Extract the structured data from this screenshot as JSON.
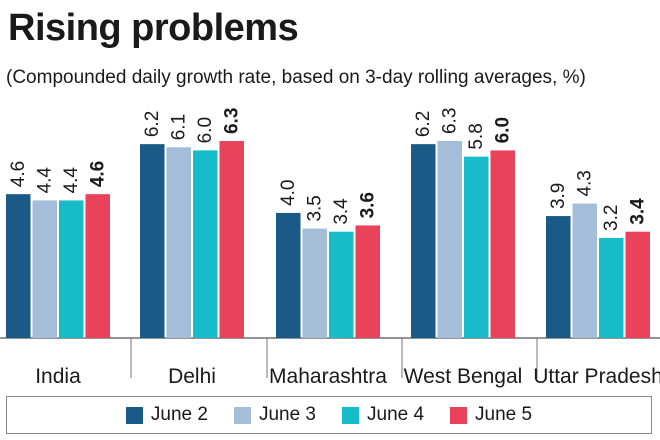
{
  "chart_data": {
    "type": "bar",
    "title": "Rising problems",
    "subtitle": "(Compounded daily growth rate, based on 3-day rolling averages, %)",
    "categories": [
      "India",
      "Delhi",
      "Maharashtra",
      "West Bengal",
      "Uttar Pradesh"
    ],
    "series": [
      {
        "name": "June 2",
        "color": "#1a5a86",
        "values": [
          4.6,
          6.2,
          4.0,
          6.2,
          3.9
        ],
        "labels": [
          "4.6",
          "6.2",
          "4.0",
          "6.2",
          "3.9"
        ],
        "bold": false
      },
      {
        "name": "June 3",
        "color": "#a4bed9",
        "values": [
          4.4,
          6.1,
          3.5,
          6.3,
          4.3
        ],
        "labels": [
          "4.4",
          "6.1",
          "3.5",
          "6.3",
          "4.3"
        ],
        "bold": false
      },
      {
        "name": "June 4",
        "color": "#16bdc9",
        "values": [
          4.4,
          6.0,
          3.4,
          5.8,
          3.2
        ],
        "labels": [
          "4.4",
          "6.0",
          "3.4",
          "5.8",
          "3.2"
        ],
        "bold": false
      },
      {
        "name": "June 5",
        "color": "#e8435b",
        "values": [
          4.6,
          6.3,
          3.6,
          6.0,
          3.4
        ],
        "labels": [
          "4.6",
          "6.3",
          "3.6",
          "6.0",
          "3.4"
        ],
        "bold": true
      }
    ],
    "ylim": [
      0,
      7
    ],
    "xlabel": "",
    "ylabel": "",
    "grid": false,
    "legend": "bottom"
  }
}
